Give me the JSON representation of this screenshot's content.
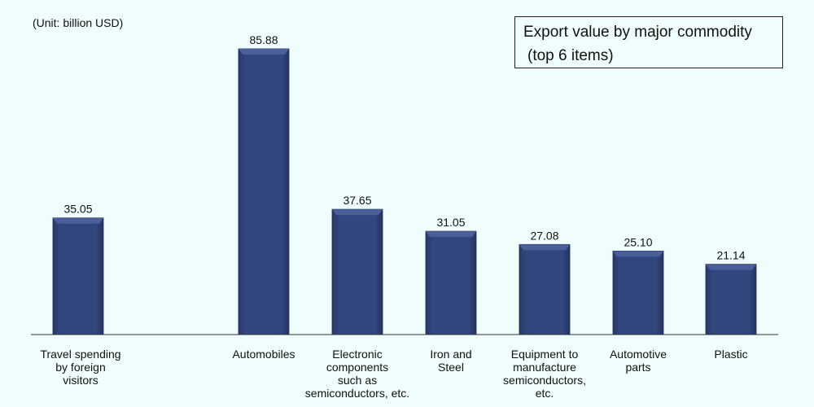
{
  "unit_label": "(Unit: billion USD)",
  "legend": {
    "line1": "Export value by major commodity",
    "line2": "(top 6 items)"
  },
  "colors": {
    "bar_fill": "#33477f",
    "bar_top": "#4a5f9a",
    "background": "#f0fdfd"
  },
  "chart_data": {
    "type": "bar",
    "title": "",
    "xlabel": "",
    "ylabel": "",
    "ylim": [
      0,
      85.88
    ],
    "grid": false,
    "categories": [
      "Travel spending\nby foreign\nvisitors",
      "Automobiles",
      "Electronic\ncomponents\nsuch as\nsemiconductors, etc.",
      "Iron and\nSteel",
      "Equipment to\nmanufacture\nsemiconductors,\netc.",
      "Automotive\nparts",
      "Plastic"
    ],
    "values": [
      35.05,
      85.88,
      37.65,
      31.05,
      27.08,
      25.1,
      21.14
    ],
    "value_labels": [
      "35.05",
      "85.88",
      "37.65",
      "31.05",
      "27.08",
      "25.10",
      "21.14"
    ]
  }
}
